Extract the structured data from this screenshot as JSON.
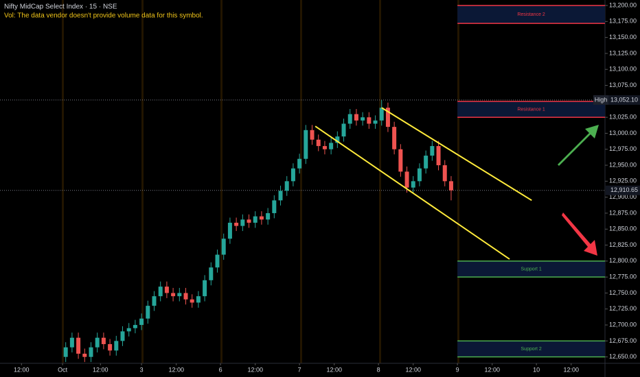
{
  "chart_data": {
    "type": "candlestick",
    "title": "Nifty MidCap Select Index · 15 · NSE",
    "subtitle": "Vol: The data vendor doesn't provide volume data for this symbol.",
    "up_color": "#26a69a",
    "down_color": "#ef5350",
    "x": [
      1,
      3,
      5,
      7,
      9,
      11,
      13,
      15,
      17,
      19,
      21,
      23,
      25,
      27,
      29,
      31,
      33,
      35,
      37,
      39,
      41,
      43,
      45,
      47,
      49,
      51,
      53,
      55,
      57,
      59,
      61,
      63,
      65,
      67,
      69,
      71,
      73,
      75,
      77,
      79,
      81,
      83,
      85,
      87,
      89,
      91,
      93,
      95,
      97,
      99,
      101,
      103,
      105,
      107,
      109,
      111,
      113,
      115,
      117,
      119,
      121,
      123
    ],
    "open": [
      12650,
      12665,
      12680,
      12655,
      12650,
      12665,
      12680,
      12670,
      12660,
      12675,
      12690,
      12695,
      12700,
      12710,
      12730,
      12745,
      12760,
      12750,
      12745,
      12750,
      12740,
      12735,
      12745,
      12770,
      12790,
      12810,
      12835,
      12860,
      12855,
      12865,
      12860,
      12870,
      12865,
      12875,
      12895,
      12910,
      12925,
      12945,
      12960,
      13005,
      12990,
      12980,
      12975,
      12985,
      12995,
      13015,
      13030,
      13020,
      13025,
      13015,
      13020,
      13040,
      13010,
      12975,
      12940,
      12915,
      12925,
      12945,
      12965,
      12980,
      12950,
      12925
    ],
    "high": [
      12673,
      12688,
      12688,
      12663,
      12673,
      12688,
      12688,
      12678,
      12683,
      12698,
      12703,
      12708,
      12718,
      12738,
      12753,
      12768,
      12768,
      12758,
      12758,
      12758,
      12748,
      12753,
      12778,
      12798,
      12818,
      12843,
      12868,
      12868,
      12873,
      12873,
      12878,
      12878,
      12883,
      12903,
      12918,
      12933,
      12953,
      12968,
      13013,
      13013,
      12998,
      12988,
      12993,
      13003,
      13023,
      13038,
      13038,
      13033,
      13033,
      13028,
      13052.1,
      13048,
      13018,
      12983,
      12948,
      12933,
      12953,
      12973,
      12988,
      12988,
      12958,
      12933
    ],
    "low": [
      12642,
      12657,
      12647,
      12642,
      12642,
      12657,
      12662,
      12652,
      12652,
      12667,
      12682,
      12687,
      12692,
      12702,
      12722,
      12737,
      12742,
      12737,
      12737,
      12732,
      12727,
      12727,
      12737,
      12762,
      12782,
      12802,
      12827,
      12847,
      12847,
      12852,
      12852,
      12857,
      12857,
      12867,
      12887,
      12902,
      12917,
      12937,
      12952,
      12982,
      12972,
      12967,
      12967,
      12977,
      12987,
      13007,
      13012,
      13012,
      13007,
      13007,
      13012,
      13002,
      12967,
      12932,
      12907,
      12907,
      12917,
      12937,
      12957,
      12942,
      12917,
      12895
    ],
    "close": [
      12665,
      12680,
      12655,
      12650,
      12665,
      12680,
      12670,
      12660,
      12675,
      12690,
      12695,
      12700,
      12710,
      12730,
      12745,
      12760,
      12750,
      12745,
      12750,
      12740,
      12735,
      12745,
      12770,
      12790,
      12810,
      12835,
      12860,
      12855,
      12865,
      12860,
      12870,
      12865,
      12875,
      12895,
      12910,
      12925,
      12945,
      12960,
      13005,
      12990,
      12980,
      12975,
      12985,
      12995,
      13015,
      13030,
      13020,
      13025,
      13015,
      13020,
      13040,
      13010,
      12975,
      12940,
      12915,
      12925,
      12945,
      12965,
      12980,
      12950,
      12925,
      12910.65
    ],
    "xlim": [
      -19.8,
      171.7
    ],
    "ylim": [
      12640,
      13208.6
    ],
    "xticks": [
      {
        "value": -13,
        "label": "12:00"
      },
      {
        "value": 0,
        "label": "Oct"
      },
      {
        "value": 12,
        "label": "12:00"
      },
      {
        "value": 25,
        "label": "3"
      },
      {
        "value": 36,
        "label": "12:00"
      },
      {
        "value": 50,
        "label": "6"
      },
      {
        "value": 61,
        "label": "12:00"
      },
      {
        "value": 75,
        "label": "7"
      },
      {
        "value": 86,
        "label": "12:00"
      },
      {
        "value": 100,
        "label": "8"
      },
      {
        "value": 111,
        "label": "12:00"
      },
      {
        "value": 125,
        "label": "9"
      },
      {
        "value": 136,
        "label": "12:00"
      },
      {
        "value": 150,
        "label": "10"
      },
      {
        "value": 161,
        "label": "12:00"
      }
    ],
    "yticks": [
      {
        "value": 12650,
        "label": "12,650.00"
      },
      {
        "value": 12675,
        "label": "12,675.00"
      },
      {
        "value": 12700,
        "label": "12,700.00"
      },
      {
        "value": 12725,
        "label": "12,725.00"
      },
      {
        "value": 12750,
        "label": "12,750.00"
      },
      {
        "value": 12775,
        "label": "12,775.00"
      },
      {
        "value": 12800,
        "label": "12,800.00"
      },
      {
        "value": 12825,
        "label": "12,825.00"
      },
      {
        "value": 12850,
        "label": "12,850.00"
      },
      {
        "value": 12875,
        "label": "12,875.00"
      },
      {
        "value": 12900,
        "label": "12,900.00"
      },
      {
        "value": 12925,
        "label": "12,925.00"
      },
      {
        "value": 12950,
        "label": "12,950.00"
      },
      {
        "value": 12975,
        "label": "12,975.00"
      },
      {
        "value": 13000,
        "label": "13,000.00"
      },
      {
        "value": 13025,
        "label": "13,025.00"
      },
      {
        "value": 13050,
        "label": "13,050.00"
      },
      {
        "value": 13075,
        "label": "13,075.00"
      },
      {
        "value": 13100,
        "label": "13,100.00"
      },
      {
        "value": 13125,
        "label": "13,125.00"
      },
      {
        "value": 13150,
        "label": "13,150.00"
      },
      {
        "value": 13175,
        "label": "13,175.00"
      },
      {
        "value": 13200,
        "label": "13,200.00"
      }
    ],
    "zones": [
      {
        "label": "Resistance 2",
        "low": 13172,
        "high": 13200,
        "x_start": 125,
        "color": "#f23645"
      },
      {
        "label": "Resistance 1",
        "low": 13025,
        "high": 13050,
        "x_start": 125,
        "color": "#f23645"
      },
      {
        "label": "Support 1",
        "low": 12775,
        "high": 12800,
        "x_start": 125,
        "color": "#4caf50"
      },
      {
        "label": "Support 2",
        "low": 12650,
        "high": 12675,
        "x_start": 125,
        "color": "#4caf50"
      }
    ],
    "channel": {
      "color": "#ffeb3b",
      "lines": [
        {
          "x": [
            101,
            148.5
          ],
          "y": [
            13040,
            12895
          ]
        },
        {
          "x": [
            80,
            141.5
          ],
          "y": [
            13011,
            12803
          ]
        }
      ]
    },
    "high_marker": {
      "label": "High",
      "value": 13052.1,
      "value_label": "13,052.10"
    },
    "last_price": {
      "value": 12910.65,
      "value_label": "12,910.65"
    }
  }
}
